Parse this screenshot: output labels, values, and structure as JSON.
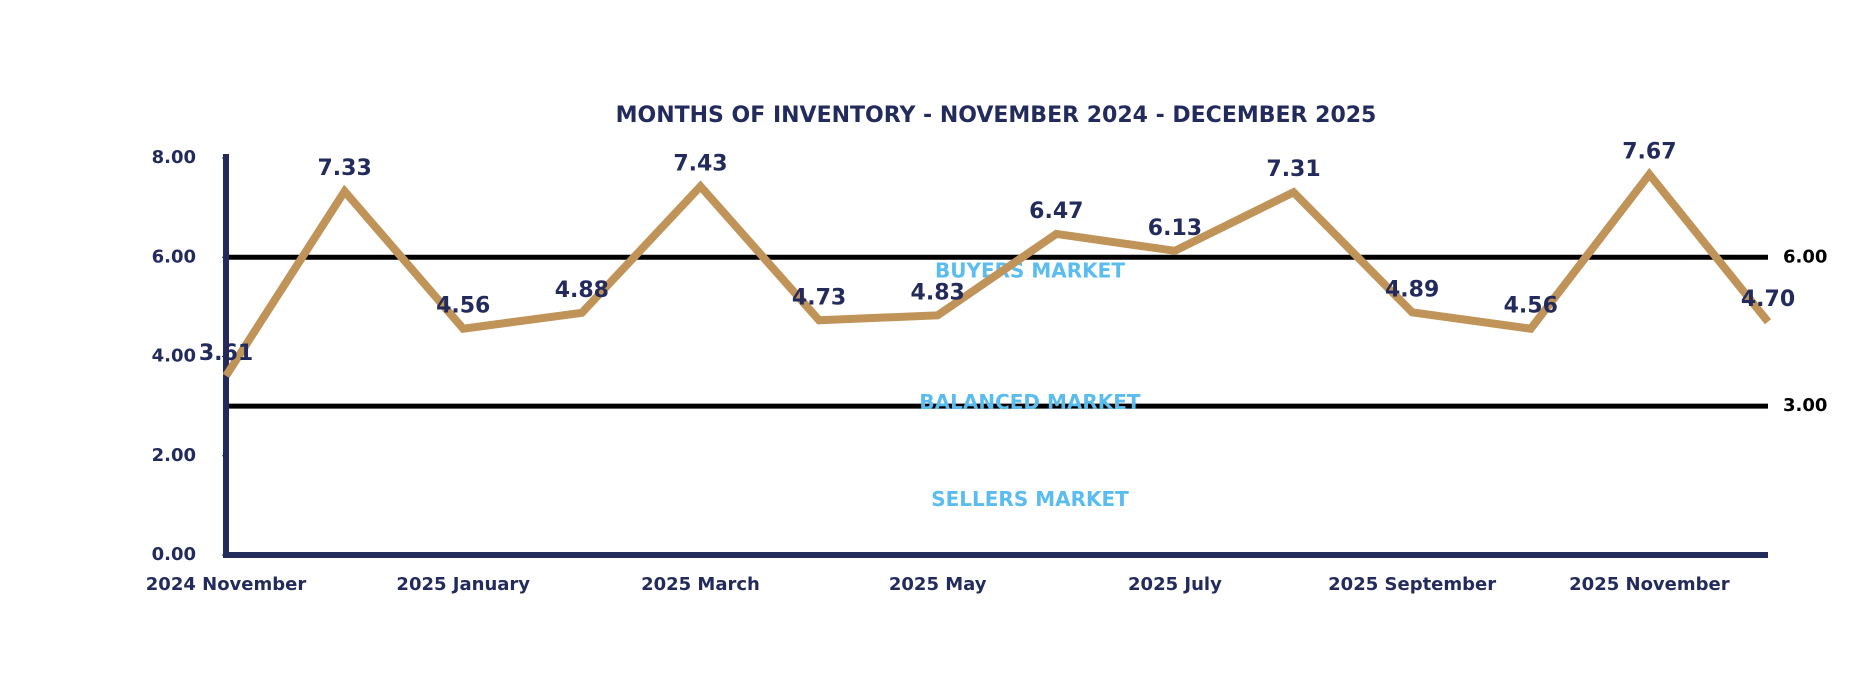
{
  "chart_data": {
    "type": "line",
    "title": "MONTHS OF INVENTORY - NOVEMBER 2024 - DECEMBER 2025",
    "categories": [
      "2024 November",
      null,
      "2025 January",
      null,
      "2025 March",
      null,
      "2025 May",
      null,
      "2025 July",
      null,
      "2025 September",
      null,
      "2025 November",
      null
    ],
    "series": [
      {
        "name": "Months of Inventory",
        "color": "#c09358",
        "values": [
          3.61,
          7.33,
          4.56,
          4.88,
          7.43,
          4.73,
          4.83,
          6.47,
          6.13,
          7.31,
          4.89,
          4.56,
          7.67,
          4.7
        ],
        "value_labels": [
          "3.61",
          "7.33",
          "4.56",
          "4.88",
          "7.43",
          "4.73",
          "4.83",
          "6.47",
          "6.13",
          "7.31",
          "4.89",
          "4.56",
          "7.67",
          "4.70"
        ]
      }
    ],
    "ylim": [
      0,
      8
    ],
    "yticks": [
      {
        "value": 0,
        "label": "0.00"
      },
      {
        "value": 2,
        "label": "2.00"
      },
      {
        "value": 4,
        "label": "4.00"
      },
      {
        "value": 6,
        "label": "6.00"
      },
      {
        "value": 8,
        "label": "8.00"
      }
    ],
    "reference_lines": [
      {
        "value": 6,
        "label": "6.00"
      },
      {
        "value": 3,
        "label": "3.00"
      }
    ],
    "annotations": [
      "BUYERS MARKET",
      "BALANCED MARKET",
      "SELLERS MARKET"
    ],
    "grid": false
  }
}
